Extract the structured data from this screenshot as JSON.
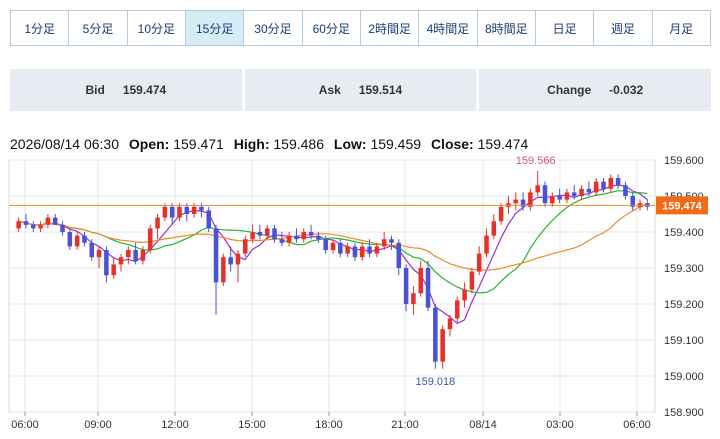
{
  "tabs": [
    {
      "label": "1分足",
      "active": false
    },
    {
      "label": "5分足",
      "active": false
    },
    {
      "label": "10分足",
      "active": false
    },
    {
      "label": "15分足",
      "active": true
    },
    {
      "label": "30分足",
      "active": false
    },
    {
      "label": "60分足",
      "active": false
    },
    {
      "label": "2時間足",
      "active": false
    },
    {
      "label": "4時間足",
      "active": false
    },
    {
      "label": "8時間足",
      "active": false
    },
    {
      "label": "日足",
      "active": false
    },
    {
      "label": "週足",
      "active": false
    },
    {
      "label": "月足",
      "active": false
    }
  ],
  "quotes": {
    "bid_label": "Bid",
    "bid": "159.474",
    "ask_label": "Ask",
    "ask": "159.514",
    "change_label": "Change",
    "change": "-0.032"
  },
  "ohlc": {
    "datetime": "2026/08/14 06:30",
    "open_label": "Open:",
    "open": "159.471",
    "high_label": "High:",
    "high": "159.486",
    "low_label": "Low:",
    "low": "159.459",
    "close_label": "Close:",
    "close": "159.474"
  },
  "colors": {
    "up": "#e8302a",
    "down": "#4a52d6",
    "ma_fast": "#9b30d9",
    "ma_mid": "#27b52a",
    "ma_slow": "#f08a24",
    "price_line": "#f08a24",
    "price_tag": "#f06a18"
  },
  "chart_data": {
    "type": "candlestick",
    "yticks": [
      "159.600",
      "159.500",
      "159.400",
      "159.300",
      "159.200",
      "159.100",
      "159.000",
      "158.900"
    ],
    "ylim": [
      158.9,
      159.6
    ],
    "xticks": [
      "06:00",
      "09:00",
      "12:00",
      "15:00",
      "18:00",
      "21:00",
      "08/14",
      "03:00",
      "06:00"
    ],
    "current_price": "159.474",
    "high_annotation": "159.566",
    "low_annotation": "159.018",
    "candles": [
      [
        159.41,
        159.44,
        159.4,
        159.43
      ],
      [
        159.43,
        159.45,
        159.41,
        159.42
      ],
      [
        159.42,
        159.43,
        159.4,
        159.41
      ],
      [
        159.41,
        159.43,
        159.4,
        159.42
      ],
      [
        159.42,
        159.45,
        159.41,
        159.44
      ],
      [
        159.44,
        159.45,
        159.42,
        159.42
      ],
      [
        159.42,
        159.43,
        159.39,
        159.4
      ],
      [
        159.4,
        159.41,
        159.35,
        159.36
      ],
      [
        159.36,
        159.4,
        159.35,
        159.39
      ],
      [
        159.39,
        159.4,
        159.36,
        159.37
      ],
      [
        159.37,
        159.38,
        159.32,
        159.33
      ],
      [
        159.33,
        159.36,
        159.3,
        159.35
      ],
      [
        159.35,
        159.36,
        159.26,
        159.28
      ],
      [
        159.28,
        159.33,
        159.27,
        159.31
      ],
      [
        159.31,
        159.34,
        159.29,
        159.33
      ],
      [
        159.33,
        159.36,
        159.31,
        159.35
      ],
      [
        159.35,
        159.37,
        159.31,
        159.32
      ],
      [
        159.32,
        159.36,
        159.31,
        159.35
      ],
      [
        159.35,
        159.42,
        159.34,
        159.41
      ],
      [
        159.41,
        159.45,
        159.38,
        159.44
      ],
      [
        159.44,
        159.48,
        159.43,
        159.47
      ],
      [
        159.47,
        159.48,
        159.42,
        159.44
      ],
      [
        159.44,
        159.48,
        159.43,
        159.47
      ],
      [
        159.47,
        159.48,
        159.43,
        159.45
      ],
      [
        159.45,
        159.48,
        159.44,
        159.47
      ],
      [
        159.47,
        159.48,
        159.44,
        159.46
      ],
      [
        159.46,
        159.47,
        159.4,
        159.41
      ],
      [
        159.41,
        159.42,
        159.17,
        159.26
      ],
      [
        159.26,
        159.34,
        159.25,
        159.33
      ],
      [
        159.33,
        159.36,
        159.29,
        159.31
      ],
      [
        159.31,
        159.35,
        159.26,
        159.34
      ],
      [
        159.34,
        159.39,
        159.33,
        159.38
      ],
      [
        159.38,
        159.42,
        159.37,
        159.4
      ],
      [
        159.4,
        159.42,
        159.38,
        159.39
      ],
      [
        159.39,
        159.42,
        159.38,
        159.41
      ],
      [
        159.41,
        159.42,
        159.37,
        159.38
      ],
      [
        159.38,
        159.4,
        159.36,
        159.37
      ],
      [
        159.37,
        159.4,
        159.36,
        159.39
      ],
      [
        159.39,
        159.41,
        159.37,
        159.38
      ],
      [
        159.38,
        159.41,
        159.37,
        159.4
      ],
      [
        159.4,
        159.42,
        159.38,
        159.39
      ],
      [
        159.39,
        159.4,
        159.37,
        159.38
      ],
      [
        159.38,
        159.39,
        159.34,
        159.35
      ],
      [
        159.35,
        159.38,
        159.34,
        159.37
      ],
      [
        159.37,
        159.38,
        159.33,
        159.34
      ],
      [
        159.34,
        159.37,
        159.33,
        159.36
      ],
      [
        159.36,
        159.37,
        159.32,
        159.33
      ],
      [
        159.33,
        159.37,
        159.32,
        159.36
      ],
      [
        159.36,
        159.38,
        159.33,
        159.34
      ],
      [
        159.34,
        159.37,
        159.33,
        159.36
      ],
      [
        159.36,
        159.4,
        159.35,
        159.38
      ],
      [
        159.38,
        159.39,
        159.35,
        159.37
      ],
      [
        159.37,
        159.38,
        159.28,
        159.3
      ],
      [
        159.3,
        159.31,
        159.18,
        159.2
      ],
      [
        159.2,
        159.25,
        159.17,
        159.23
      ],
      [
        159.23,
        159.32,
        159.22,
        159.3
      ],
      [
        159.3,
        159.32,
        159.18,
        159.19
      ],
      [
        159.19,
        159.2,
        159.02,
        159.04
      ],
      [
        159.04,
        159.14,
        159.02,
        159.13
      ],
      [
        159.13,
        159.17,
        159.11,
        159.16
      ],
      [
        159.16,
        159.22,
        159.15,
        159.21
      ],
      [
        159.21,
        159.26,
        159.19,
        159.24
      ],
      [
        159.24,
        159.3,
        159.23,
        159.29
      ],
      [
        159.29,
        159.36,
        159.28,
        159.34
      ],
      [
        159.34,
        159.41,
        159.33,
        159.39
      ],
      [
        159.39,
        159.45,
        159.38,
        159.43
      ],
      [
        159.43,
        159.48,
        159.42,
        159.47
      ],
      [
        159.47,
        159.5,
        159.45,
        159.48
      ],
      [
        159.48,
        159.51,
        159.46,
        159.49
      ],
      [
        159.49,
        159.51,
        159.46,
        159.47
      ],
      [
        159.47,
        159.52,
        159.46,
        159.51
      ],
      [
        159.51,
        159.57,
        159.5,
        159.53
      ],
      [
        159.53,
        159.54,
        159.47,
        159.48
      ],
      [
        159.48,
        159.51,
        159.47,
        159.5
      ],
      [
        159.5,
        159.52,
        159.48,
        159.49
      ],
      [
        159.49,
        159.52,
        159.48,
        159.51
      ],
      [
        159.51,
        159.53,
        159.49,
        159.5
      ],
      [
        159.5,
        159.53,
        159.49,
        159.52
      ],
      [
        159.52,
        159.54,
        159.5,
        159.51
      ],
      [
        159.51,
        159.55,
        159.5,
        159.54
      ],
      [
        159.54,
        159.55,
        159.51,
        159.52
      ],
      [
        159.52,
        159.56,
        159.51,
        159.55
      ],
      [
        159.55,
        159.56,
        159.52,
        159.53
      ],
      [
        159.53,
        159.54,
        159.49,
        159.5
      ],
      [
        159.5,
        159.51,
        159.46,
        159.47
      ],
      [
        159.47,
        159.49,
        159.46,
        159.48
      ],
      [
        159.48,
        159.49,
        159.46,
        159.47
      ]
    ]
  }
}
